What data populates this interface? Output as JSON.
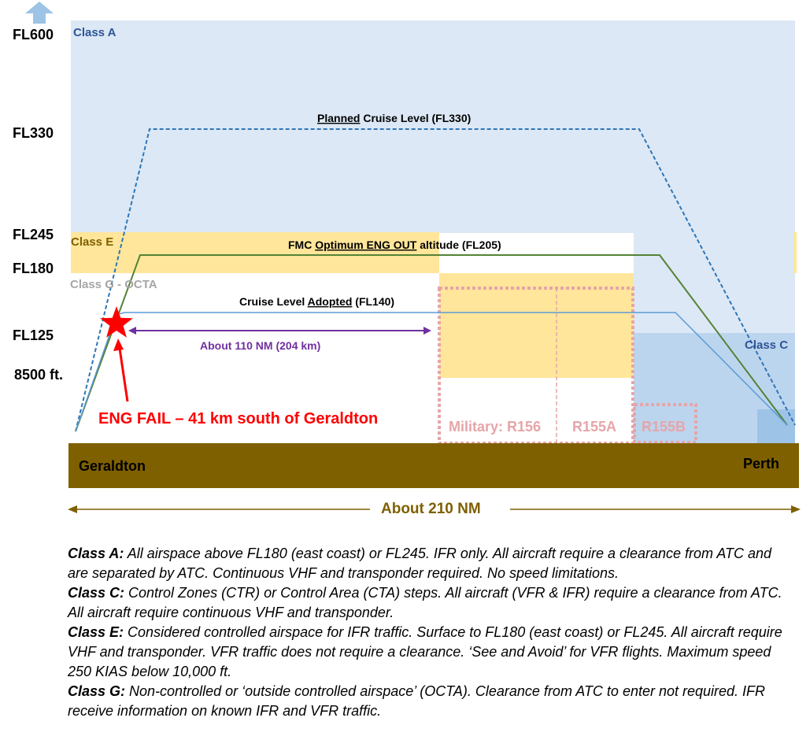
{
  "flight_levels": [
    "FL600",
    "FL330",
    "FL245",
    "FL180",
    "FL125",
    "8500 ft."
  ],
  "airspace": {
    "class_a": "Class A",
    "class_e": "Class E",
    "class_g": "Class G - OCTA",
    "class_c": "Class C"
  },
  "profiles": {
    "planned": {
      "underlined": "Planned",
      "rest": " Cruise Level (FL330)"
    },
    "optimum": {
      "prefix": "FMC ",
      "underlined": "Optimum ENG OUT",
      "rest": " altitude (FL205)"
    },
    "adopted": {
      "prefix": "Cruise Level ",
      "underlined": "Adopted",
      "rest": " (FL140)"
    }
  },
  "distance_110": "About 110 NM (204 km)",
  "distance_210": "About 210 NM",
  "engine_failure": "ENG FAIL – 41 km south of Geraldton",
  "restricted": {
    "r156": "Military: R156",
    "r155a": "R155A",
    "r155b": "R155B"
  },
  "places": {
    "origin": "Geraldton",
    "destination": "Perth"
  },
  "colors": {
    "class_a_fill": "#dce8f5",
    "class_e_fill": "#ffe69a",
    "class_c_fill": "#bcd5ee",
    "ground": "#7f6000",
    "planned_line": "#2e75b6",
    "optimum_line": "#548235",
    "adopted_line": "#5b9bd5",
    "distance_arrow": "#7030a0",
    "engine_fail": "#ff0000",
    "restricted": "#e6a5a9"
  },
  "legend": [
    {
      "term": "Class A:",
      "text": " All airspace above FL180 (east coast) or FL245. IFR only. All aircraft require a clearance from ATC and are separated by ATC. Continuous VHF and transponder required. No speed limitations."
    },
    {
      "term": "Class C:",
      "text": " Control Zones (CTR) or Control Area (CTA) steps. All aircraft (VFR & IFR) require a clearance from ATC. All aircraft require continuous VHF and transponder."
    },
    {
      "term": "Class E:",
      "text": " Considered controlled airspace for IFR traffic. Surface to FL180 (east coast) or FL245. All aircraft require VHF and transponder. VFR traffic does not require a clearance. ‘See and Avoid’ for VFR flights. Maximum speed 250 KIAS below 10,000 ft."
    },
    {
      "term": "Class G:",
      "text": " Non-controlled or ‘outside controlled airspace’ (OCTA). Clearance from ATC to enter not required. IFR receive information on known IFR and VFR traffic."
    }
  ]
}
